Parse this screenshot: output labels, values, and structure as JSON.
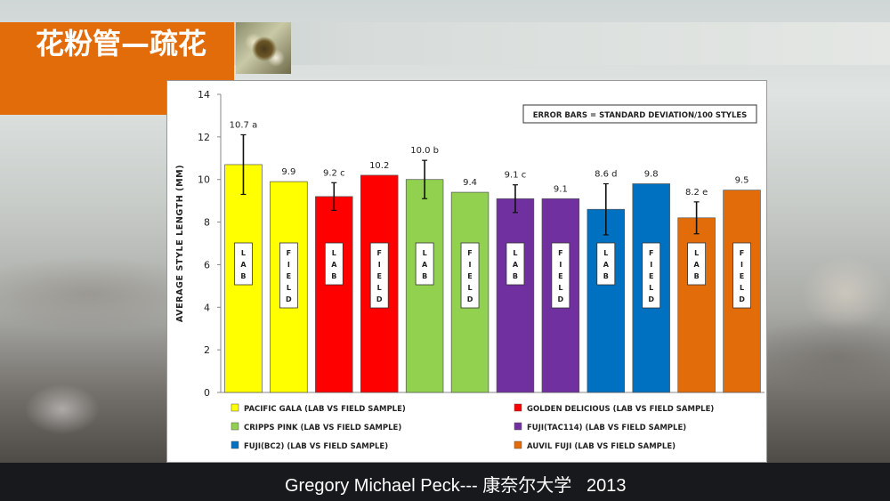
{
  "slide": {
    "title": "花粉管—疏花",
    "footer": "Gregory Michael Peck--- 康奈尔大学   2013"
  },
  "chart_data": {
    "type": "bar",
    "ylabel": "AVERAGE STYLE LENGTH (MM)",
    "xlabel": "",
    "ylim": [
      0,
      14
    ],
    "yticks": [
      0,
      2,
      4,
      6,
      8,
      10,
      12,
      14
    ],
    "grid": false,
    "annotation": "ERROR BARS = STANDARD DEVIATION/100 STYLES",
    "legend_position": "bottom",
    "bars": [
      {
        "label": "LAB",
        "value": 10.7,
        "data_label": "10.7 a",
        "error": 1.4,
        "color": "#ffff00",
        "group": 0
      },
      {
        "label": "FIELD",
        "value": 9.9,
        "data_label": "9.9",
        "error": null,
        "color": "#ffff00",
        "group": 0
      },
      {
        "label": "LAB",
        "value": 9.2,
        "data_label": "9.2 c",
        "error": 0.65,
        "color": "#ff0000",
        "group": 1
      },
      {
        "label": "FIELD",
        "value": 10.2,
        "data_label": "10.2",
        "error": null,
        "color": "#ff0000",
        "group": 1
      },
      {
        "label": "LAB",
        "value": 10.0,
        "data_label": "10.0 b",
        "error": 0.9,
        "color": "#92d050",
        "group": 2
      },
      {
        "label": "FIELD",
        "value": 9.4,
        "data_label": "9.4",
        "error": null,
        "color": "#92d050",
        "group": 2
      },
      {
        "label": "LAB",
        "value": 9.1,
        "data_label": "9.1 c",
        "error": 0.65,
        "color": "#7030a0",
        "group": 3
      },
      {
        "label": "FIELD",
        "value": 9.1,
        "data_label": "9.1",
        "error": null,
        "color": "#7030a0",
        "group": 3
      },
      {
        "label": "LAB",
        "value": 8.6,
        "data_label": "8.6 d",
        "error": 1.2,
        "color": "#0070c0",
        "group": 4
      },
      {
        "label": "FIELD",
        "value": 9.8,
        "data_label": "9.8",
        "error": null,
        "color": "#0070c0",
        "group": 4
      },
      {
        "label": "LAB",
        "value": 8.2,
        "data_label": "8.2 e",
        "error": 0.75,
        "color": "#e36c0a",
        "group": 5
      },
      {
        "label": "FIELD",
        "value": 9.5,
        "data_label": "9.5",
        "error": null,
        "color": "#e36c0a",
        "group": 5
      }
    ],
    "legend": [
      {
        "name": "PACIFIC GALA (LAB VS FIELD SAMPLE)",
        "color": "#ffff00"
      },
      {
        "name": "GOLDEN DELICIOUS (LAB VS FIELD SAMPLE)",
        "color": "#ff0000"
      },
      {
        "name": "CRIPPS PINK (LAB VS FIELD SAMPLE)",
        "color": "#92d050"
      },
      {
        "name": "FUJI(TAC114) (LAB VS FIELD SAMPLE)",
        "color": "#7030a0"
      },
      {
        "name": "FUJI(BC2) (LAB VS FIELD SAMPLE)",
        "color": "#0070c0"
      },
      {
        "name": "AUVIL FUJI (LAB VS FIELD SAMPLE)",
        "color": "#e36c0a"
      }
    ]
  }
}
